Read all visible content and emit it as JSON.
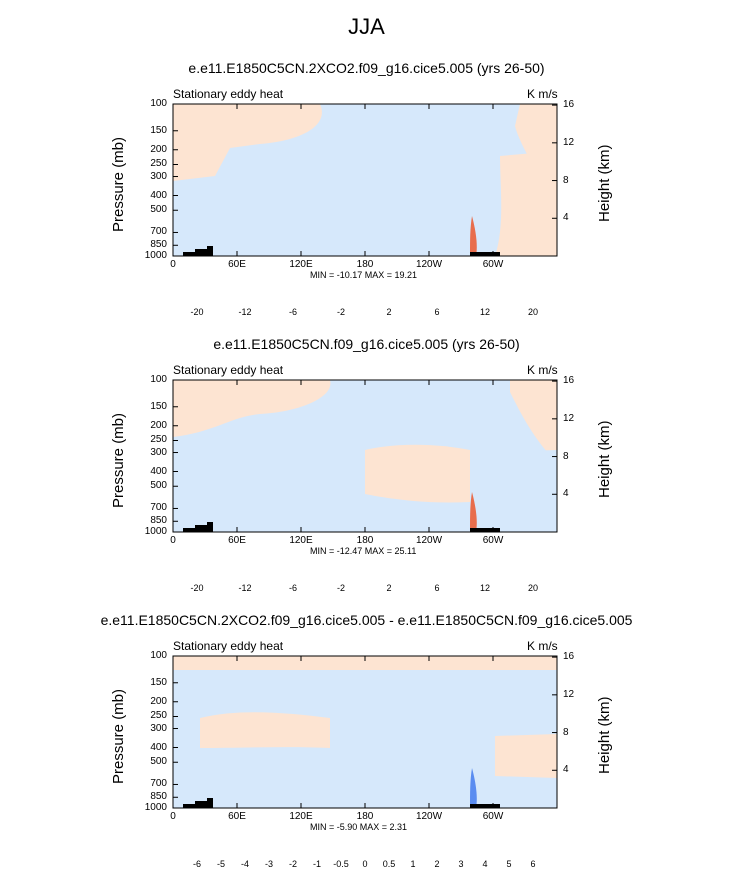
{
  "main_title": "JJA",
  "colors": {
    "light_blue": "#d6e8fb",
    "light_peach": "#fde4d2",
    "frame": "#000000",
    "terrain": "#000000"
  },
  "colorbar_colors": [
    "#0c0a7a",
    "#0f1fa8",
    "#1b3fcf",
    "#2f62e3",
    "#5a8cf0",
    "#93b6f6",
    "#c3d9fa",
    "#e3eefc",
    "#fde6d3",
    "#f9c6a8",
    "#f19a77",
    "#e86d4c",
    "#d9432a",
    "#bf2516",
    "#941308",
    "#6c0a04"
  ],
  "panels": [
    {
      "title": "e.e11.E1850C5CN.2XCO2.f09_g16.cice5.005 (yrs 26-50)",
      "left_label": "Stationary eddy heat",
      "right_label": "K m/s",
      "min_max": "MIN = -10.17  MAX =  19.21",
      "colorbar_labels": [
        "-20",
        "-12",
        "-6",
        "-2",
        "2",
        "6",
        "12",
        "20"
      ]
    },
    {
      "title": "e.e11.E1850C5CN.f09_g16.cice5.005 (yrs 26-50)",
      "left_label": "Stationary eddy heat",
      "right_label": "K m/s",
      "min_max": "MIN = -12.47  MAX =  25.11",
      "colorbar_labels": [
        "-20",
        "-12",
        "-6",
        "-2",
        "2",
        "6",
        "12",
        "20"
      ]
    },
    {
      "title": "e.e11.E1850C5CN.2XCO2.f09_g16.cice5.005 - e.e11.E1850C5CN.f09_g16.cice5.005",
      "left_label": "Stationary eddy heat",
      "right_label": "K m/s",
      "min_max": "MIN =  -5.90  MAX =   2.31",
      "colorbar_labels": [
        "-6",
        "-5",
        "-4",
        "-3",
        "-2",
        "-1",
        "-0.5",
        "0",
        "0.5",
        "1",
        "2",
        "3",
        "4",
        "5",
        "6"
      ]
    }
  ],
  "chart_data": [
    {
      "type": "heatmap",
      "title": "e.e11.E1850C5CN.2XCO2.f09_g16.cice5.005 (yrs 26-50)",
      "variable": "Stationary eddy heat",
      "units": "K m/s",
      "xlabel": "",
      "ylabel": "Pressure (mb)",
      "ylabel_right": "Height (km)",
      "x_ticks": [
        "0",
        "60E",
        "120E",
        "180",
        "120W",
        "60W"
      ],
      "y_ticks": [
        "100",
        "150",
        "200",
        "250",
        "300",
        "400",
        "500",
        "700",
        "850",
        "1000"
      ],
      "y_right_ticks": [
        "4",
        "8",
        "12",
        "16"
      ],
      "ylim": [
        1000,
        100
      ],
      "min": -10.17,
      "max": 19.21,
      "contour_levels": [
        -20,
        -12,
        -6,
        -2,
        2,
        6,
        12,
        20
      ]
    },
    {
      "type": "heatmap",
      "title": "e.e11.E1850C5CN.f09_g16.cice5.005 (yrs 26-50)",
      "variable": "Stationary eddy heat",
      "units": "K m/s",
      "xlabel": "",
      "ylabel": "Pressure (mb)",
      "ylabel_right": "Height (km)",
      "x_ticks": [
        "0",
        "60E",
        "120E",
        "180",
        "120W",
        "60W"
      ],
      "y_ticks": [
        "100",
        "150",
        "200",
        "250",
        "300",
        "400",
        "500",
        "700",
        "850",
        "1000"
      ],
      "y_right_ticks": [
        "4",
        "8",
        "12",
        "16"
      ],
      "ylim": [
        1000,
        100
      ],
      "min": -12.47,
      "max": 25.11,
      "contour_levels": [
        -20,
        -12,
        -6,
        -2,
        2,
        6,
        12,
        20
      ]
    },
    {
      "type": "heatmap",
      "title": "e.e11.E1850C5CN.2XCO2.f09_g16.cice5.005 - e.e11.E1850C5CN.f09_g16.cice5.005",
      "variable": "Stationary eddy heat",
      "units": "K m/s",
      "xlabel": "",
      "ylabel": "Pressure (mb)",
      "ylabel_right": "Height (km)",
      "x_ticks": [
        "0",
        "60E",
        "120E",
        "180",
        "120W",
        "60W"
      ],
      "y_ticks": [
        "100",
        "150",
        "200",
        "250",
        "300",
        "400",
        "500",
        "700",
        "850",
        "1000"
      ],
      "y_right_ticks": [
        "4",
        "8",
        "12",
        "16"
      ],
      "ylim": [
        1000,
        100
      ],
      "min": -5.9,
      "max": 2.31,
      "contour_levels": [
        -6,
        -5,
        -4,
        -3,
        -2,
        -1,
        -0.5,
        0,
        0.5,
        1,
        2,
        3,
        4,
        5,
        6
      ]
    }
  ]
}
